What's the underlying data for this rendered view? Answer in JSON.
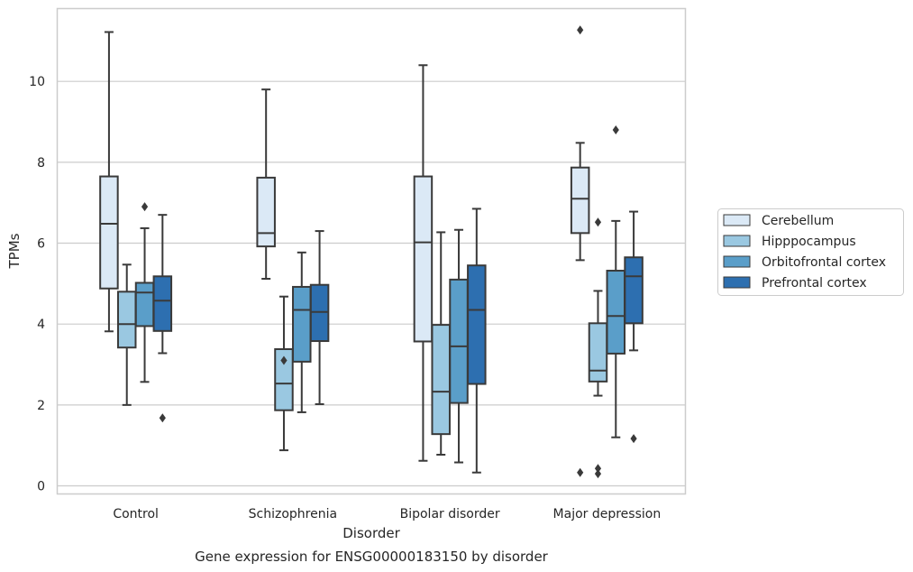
{
  "chart_data": {
    "type": "box",
    "caption": "Gene expression for ENSG00000183150 by disorder",
    "xlabel": "Disorder",
    "ylabel": "TPMs",
    "ylim": [
      -0.2,
      11.8
    ],
    "yticks": [
      0,
      2,
      4,
      6,
      8,
      10
    ],
    "grid": "horizontal",
    "legend_placement": "right",
    "categories": [
      "Control",
      "Schizophrenia",
      "Bipolar disorder",
      "Major depression"
    ],
    "series": [
      {
        "name": "Cerebellum",
        "color": "#dbe9f6",
        "boxes": [
          {
            "min": 3.82,
            "q1": 4.88,
            "median": 6.48,
            "q3": 7.65,
            "max": 11.22,
            "outliers": []
          },
          {
            "min": 5.12,
            "q1": 5.92,
            "median": 6.25,
            "q3": 7.62,
            "max": 9.8,
            "outliers": []
          },
          {
            "min": 0.62,
            "q1": 3.57,
            "median": 6.02,
            "q3": 7.65,
            "max": 10.4,
            "outliers": []
          },
          {
            "min": 5.58,
            "q1": 6.25,
            "median": 7.1,
            "q3": 7.87,
            "max": 8.48,
            "outliers": [
              11.27,
              0.33
            ]
          }
        ]
      },
      {
        "name": "Hipppocampus",
        "color": "#9ac8e1",
        "boxes": [
          {
            "min": 2.0,
            "q1": 3.42,
            "median": 4.0,
            "q3": 4.8,
            "max": 5.47,
            "outliers": []
          },
          {
            "min": 0.88,
            "q1": 1.87,
            "median": 2.53,
            "q3": 3.38,
            "max": 4.68,
            "outliers": [
              3.1
            ]
          },
          {
            "min": 0.77,
            "q1": 1.28,
            "median": 2.33,
            "q3": 3.98,
            "max": 6.27,
            "outliers": []
          },
          {
            "min": 2.23,
            "q1": 2.58,
            "median": 2.85,
            "q3": 4.02,
            "max": 4.82,
            "outliers": [
              6.52,
              0.43,
              0.3
            ]
          }
        ]
      },
      {
        "name": "Orbitofrontal cortex",
        "color": "#5a9ec9",
        "boxes": [
          {
            "min": 2.57,
            "q1": 3.95,
            "median": 4.78,
            "q3": 5.02,
            "max": 6.37,
            "outliers": [
              6.9
            ]
          },
          {
            "min": 1.82,
            "q1": 3.07,
            "median": 4.35,
            "q3": 4.92,
            "max": 5.77,
            "outliers": []
          },
          {
            "min": 0.58,
            "q1": 2.05,
            "median": 3.45,
            "q3": 5.1,
            "max": 6.33,
            "outliers": []
          },
          {
            "min": 1.2,
            "q1": 3.27,
            "median": 4.2,
            "q3": 5.32,
            "max": 6.55,
            "outliers": [
              8.8
            ]
          }
        ]
      },
      {
        "name": "Prefrontal cortex",
        "color": "#2d6fb0",
        "boxes": [
          {
            "min": 3.28,
            "q1": 3.83,
            "median": 4.58,
            "q3": 5.18,
            "max": 6.7,
            "outliers": [
              1.68
            ]
          },
          {
            "min": 2.02,
            "q1": 3.58,
            "median": 4.3,
            "q3": 4.97,
            "max": 6.3,
            "outliers": []
          },
          {
            "min": 0.33,
            "q1": 2.52,
            "median": 4.35,
            "q3": 5.45,
            "max": 6.85,
            "outliers": []
          },
          {
            "min": 3.35,
            "q1": 4.02,
            "median": 5.18,
            "q3": 5.65,
            "max": 6.78,
            "outliers": [
              1.17
            ]
          }
        ]
      }
    ]
  }
}
